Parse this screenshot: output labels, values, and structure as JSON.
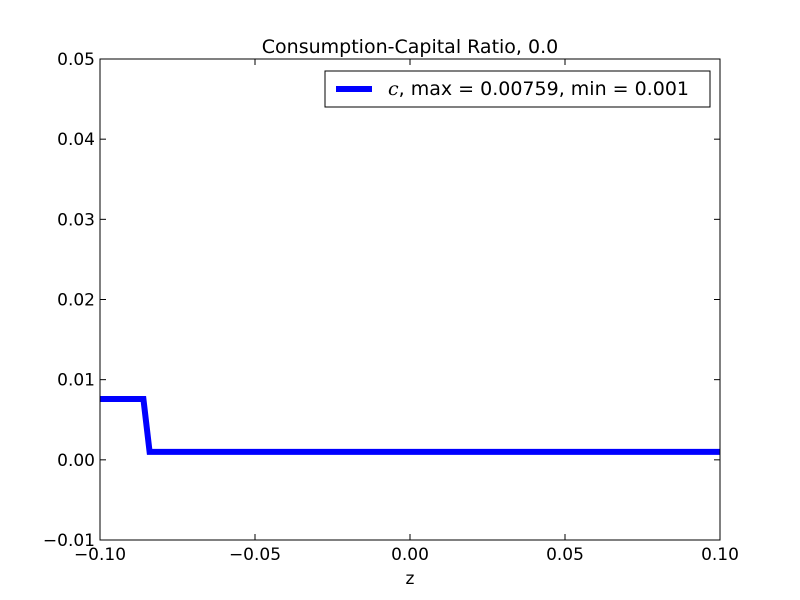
{
  "chart_data": {
    "type": "line",
    "title": "Consumption-Capital Ratio, 0.0",
    "xlabel": "z",
    "ylabel": "",
    "xlim": [
      -0.1,
      0.1
    ],
    "ylim": [
      -0.01,
      0.05
    ],
    "xticks": [
      -0.1,
      -0.05,
      0.0,
      0.05,
      0.1
    ],
    "xtick_labels": [
      "−0.10",
      "−0.05",
      "0.00",
      "0.05",
      "0.10"
    ],
    "yticks": [
      -0.01,
      0.0,
      0.01,
      0.02,
      0.03,
      0.04,
      0.05
    ],
    "ytick_labels": [
      "−0.01",
      "0.00",
      "0.01",
      "0.02",
      "0.03",
      "0.04",
      "0.05"
    ],
    "grid": false,
    "legend_position": "top-right",
    "series": [
      {
        "name_symbol": "c",
        "name_rest": ", max = 0.00759, min = 0.001",
        "color": "#0000ff",
        "x": [
          -0.1,
          -0.086,
          -0.084,
          0.1
        ],
        "y": [
          0.00759,
          0.00759,
          0.001,
          0.001
        ]
      }
    ]
  }
}
